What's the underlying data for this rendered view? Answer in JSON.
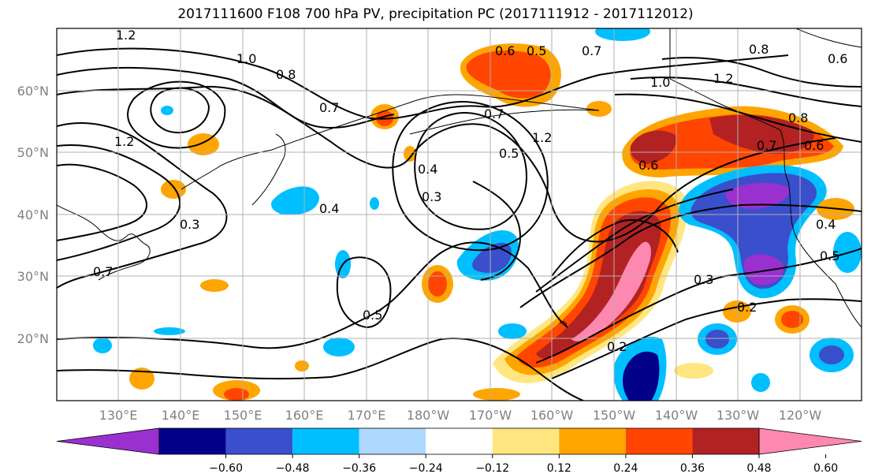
{
  "title": "2017111600 F108 700 hPa PV, precipitation PC (2017111912 - 2017112012)",
  "lat_labels": [
    "60°N",
    "50°N",
    "40°N",
    "30°N",
    "20°N"
  ],
  "lon_labels": [
    "130°E",
    "140°E",
    "150°E",
    "160°E",
    "170°E",
    "180°W",
    "170°W",
    "160°W",
    "150°W",
    "140°W",
    "130°W",
    "120°W"
  ],
  "colorbar": {
    "ticks": [
      "−0.60",
      "−0.48",
      "−0.36",
      "−0.24",
      "−0.12",
      "0.12",
      "0.24",
      "0.36",
      "0.48",
      "0.60"
    ],
    "colors": [
      "#9b30d0",
      "#00008b",
      "#3a4fcc",
      "#00bfff",
      "#add8ff",
      "#ffffff",
      "#ffe680",
      "#ffa500",
      "#ff4500",
      "#b22222",
      "#ff88b0"
    ]
  },
  "contour_labels": [
    "1.2",
    "1.0",
    "0.8",
    "0.7",
    "0.6",
    "0.5",
    "0.4",
    "0.3",
    "0.2"
  ]
}
